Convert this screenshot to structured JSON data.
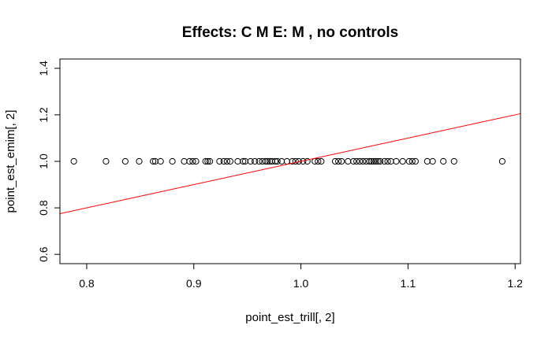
{
  "chart_data": {
    "type": "scatter",
    "title": "Effects: C M  E: M , no controls",
    "xlabel": "point_est_trill[, 2]",
    "ylabel": "point_est_emim[, 2]",
    "xlim": [
      0.775,
      1.205
    ],
    "ylim": [
      0.56,
      1.44
    ],
    "x_ticks": [
      "0.8",
      "0.9",
      "1.0",
      "1.1",
      "1.2"
    ],
    "y_ticks": [
      "0.6",
      "0.8",
      "1.0",
      "1.2",
      "1.4"
    ],
    "grid": false,
    "points": {
      "color": "#000000",
      "x": [
        0.788,
        0.818,
        0.836,
        0.849,
        0.862,
        0.864,
        0.869,
        0.88,
        0.891,
        0.896,
        0.899,
        0.902,
        0.911,
        0.913,
        0.915,
        0.924,
        0.928,
        0.931,
        0.934,
        0.941,
        0.946,
        0.948,
        0.953,
        0.957,
        0.961,
        0.964,
        0.967,
        0.969,
        0.971,
        0.973,
        0.976,
        0.978,
        0.982,
        0.987,
        0.992,
        0.995,
        0.998,
        1.002,
        1.006,
        1.013,
        1.016,
        1.019,
        1.032,
        1.035,
        1.038,
        1.044,
        1.049,
        1.052,
        1.055,
        1.058,
        1.061,
        1.064,
        1.066,
        1.068,
        1.07,
        1.072,
        1.074,
        1.078,
        1.081,
        1.084,
        1.089,
        1.095,
        1.101,
        1.104,
        1.107,
        1.118,
        1.123,
        1.133,
        1.143,
        1.188
      ],
      "y": [
        1.0,
        1.0,
        1.0,
        1.0,
        1.0,
        1.0,
        1.0,
        1.0,
        1.0,
        1.0,
        1.0,
        1.0,
        1.0,
        1.0,
        1.0,
        1.0,
        1.0,
        1.0,
        1.0,
        1.0,
        1.0,
        1.0,
        1.0,
        1.0,
        1.0,
        1.0,
        1.0,
        1.0,
        1.0,
        1.0,
        1.0,
        1.0,
        1.0,
        1.0,
        1.0,
        1.0,
        1.0,
        1.0,
        1.0,
        1.0,
        1.0,
        1.0,
        1.0,
        1.0,
        1.0,
        1.0,
        1.0,
        1.0,
        1.0,
        1.0,
        1.0,
        1.0,
        1.0,
        1.0,
        1.0,
        1.0,
        1.0,
        1.0,
        1.0,
        1.0,
        1.0,
        1.0,
        1.0,
        1.0,
        1.0,
        1.0,
        1.0,
        1.0,
        1.0,
        1.0
      ]
    },
    "reference_line": {
      "color": "#ff0000",
      "intercept": 0,
      "slope": 1
    }
  }
}
